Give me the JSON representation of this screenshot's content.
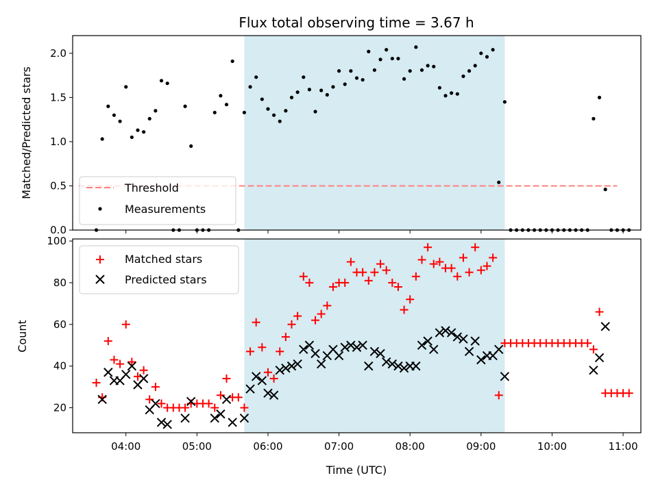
{
  "chart_data": [
    {
      "type": "scatter",
      "title": "Flux total observing time = 3.67 h",
      "ylabel": "Matched/Predicted stars",
      "xlabel": "",
      "xlim": [
        "03:15",
        "11:15"
      ],
      "ylim": [
        0,
        2.2
      ],
      "shaded_region": [
        "05:40",
        "09:20"
      ],
      "shaded_color": "#add8e6",
      "legend_position": "lower-left",
      "threshold": {
        "name": "Threshold",
        "y": 0.5,
        "x_range": [
          "03:20",
          "10:55"
        ],
        "color": "#ff7f7f",
        "style": "dashed"
      },
      "yticks": [
        "0.0",
        "0.5",
        "1.0",
        "1.5",
        "2.0"
      ],
      "series": [
        {
          "name": "Measurements",
          "color": "#000000",
          "marker": "dot",
          "points": [
            [
              "03:35",
              0.0
            ],
            [
              "03:40",
              1.03
            ],
            [
              "03:45",
              1.4
            ],
            [
              "03:50",
              1.3
            ],
            [
              "03:55",
              1.23
            ],
            [
              "04:00",
              1.62
            ],
            [
              "04:05",
              1.05
            ],
            [
              "04:10",
              1.13
            ],
            [
              "04:15",
              1.11
            ],
            [
              "04:20",
              1.26
            ],
            [
              "04:25",
              1.35
            ],
            [
              "04:30",
              1.69
            ],
            [
              "04:35",
              1.66
            ],
            [
              "04:40",
              0.0
            ],
            [
              "04:45",
              0.0
            ],
            [
              "04:50",
              1.4
            ],
            [
              "04:55",
              0.95
            ],
            [
              "05:00",
              0.0
            ],
            [
              "05:05",
              0.0
            ],
            [
              "05:10",
              0.0
            ],
            [
              "05:15",
              1.33
            ],
            [
              "05:20",
              1.52
            ],
            [
              "05:25",
              1.42
            ],
            [
              "05:30",
              1.91
            ],
            [
              "05:35",
              0.0
            ],
            [
              "05:40",
              1.33
            ],
            [
              "05:45",
              1.62
            ],
            [
              "05:50",
              1.73
            ],
            [
              "05:55",
              1.48
            ],
            [
              "06:00",
              1.37
            ],
            [
              "06:05",
              1.3
            ],
            [
              "06:10",
              1.23
            ],
            [
              "06:15",
              1.35
            ],
            [
              "06:20",
              1.5
            ],
            [
              "06:25",
              1.56
            ],
            [
              "06:30",
              1.73
            ],
            [
              "06:35",
              1.59
            ],
            [
              "06:40",
              1.34
            ],
            [
              "06:45",
              1.58
            ],
            [
              "06:50",
              1.53
            ],
            [
              "06:55",
              1.62
            ],
            [
              "07:00",
              1.8
            ],
            [
              "07:05",
              1.65
            ],
            [
              "07:10",
              1.8
            ],
            [
              "07:15",
              1.72
            ],
            [
              "07:20",
              1.7
            ],
            [
              "07:25",
              2.02
            ],
            [
              "07:30",
              1.81
            ],
            [
              "07:35",
              1.93
            ],
            [
              "07:40",
              2.04
            ],
            [
              "07:45",
              1.94
            ],
            [
              "07:50",
              1.94
            ],
            [
              "07:55",
              1.71
            ],
            [
              "08:00",
              1.8
            ],
            [
              "08:05",
              2.07
            ],
            [
              "08:10",
              1.81
            ],
            [
              "08:15",
              1.86
            ],
            [
              "08:20",
              1.85
            ],
            [
              "08:25",
              1.61
            ],
            [
              "08:30",
              1.52
            ],
            [
              "08:35",
              1.55
            ],
            [
              "08:40",
              1.54
            ],
            [
              "08:45",
              1.74
            ],
            [
              "08:50",
              1.8
            ],
            [
              "08:55",
              1.86
            ],
            [
              "09:00",
              2.0
            ],
            [
              "09:05",
              1.96
            ],
            [
              "09:10",
              2.04
            ],
            [
              "09:15",
              0.54
            ],
            [
              "09:20",
              1.45
            ],
            [
              "09:25",
              0.0
            ],
            [
              "09:30",
              0.0
            ],
            [
              "09:35",
              0.0
            ],
            [
              "09:40",
              0.0
            ],
            [
              "09:45",
              0.0
            ],
            [
              "09:50",
              0.0
            ],
            [
              "09:55",
              0.0
            ],
            [
              "10:00",
              0.0
            ],
            [
              "10:05",
              0.0
            ],
            [
              "10:10",
              0.0
            ],
            [
              "10:15",
              0.0
            ],
            [
              "10:20",
              0.0
            ],
            [
              "10:25",
              0.0
            ],
            [
              "10:30",
              0.0
            ],
            [
              "10:35",
              1.26
            ],
            [
              "10:40",
              1.5
            ],
            [
              "10:45",
              0.46
            ],
            [
              "10:50",
              0.0
            ],
            [
              "10:55",
              0.0
            ],
            [
              "11:00",
              0.0
            ],
            [
              "11:05",
              0.0
            ]
          ]
        }
      ]
    },
    {
      "type": "scatter",
      "title": "",
      "ylabel": "Count",
      "xlabel": "Time (UTC)",
      "xlim": [
        "03:15",
        "11:15"
      ],
      "ylim": [
        8,
        101
      ],
      "shaded_region": [
        "05:40",
        "09:20"
      ],
      "shaded_color": "#add8e6",
      "legend_position": "upper-left",
      "xticks": [
        "04:00",
        "05:00",
        "06:00",
        "07:00",
        "08:00",
        "09:00",
        "10:00",
        "11:00"
      ],
      "yticks": [
        "20",
        "40",
        "60",
        "80",
        "100"
      ],
      "series": [
        {
          "name": "Matched stars",
          "color": "#ff0000",
          "marker": "plus",
          "points": [
            [
              "03:35",
              32
            ],
            [
              "03:40",
              25
            ],
            [
              "03:45",
              52
            ],
            [
              "03:50",
              43
            ],
            [
              "03:55",
              41
            ],
            [
              "04:00",
              60
            ],
            [
              "04:05",
              42
            ],
            [
              "04:10",
              35
            ],
            [
              "04:15",
              38
            ],
            [
              "04:20",
              24
            ],
            [
              "04:25",
              30
            ],
            [
              "04:30",
              22
            ],
            [
              "04:35",
              20
            ],
            [
              "04:40",
              20
            ],
            [
              "04:45",
              20
            ],
            [
              "04:50",
              20
            ],
            [
              "04:55",
              22
            ],
            [
              "05:00",
              22
            ],
            [
              "05:05",
              22
            ],
            [
              "05:10",
              22
            ],
            [
              "05:15",
              20
            ],
            [
              "05:20",
              26
            ],
            [
              "05:25",
              34
            ],
            [
              "05:30",
              25
            ],
            [
              "05:35",
              25
            ],
            [
              "05:40",
              20
            ],
            [
              "05:45",
              47
            ],
            [
              "05:50",
              61
            ],
            [
              "05:55",
              49
            ],
            [
              "06:00",
              37
            ],
            [
              "06:05",
              34
            ],
            [
              "06:10",
              47
            ],
            [
              "06:15",
              54
            ],
            [
              "06:20",
              60
            ],
            [
              "06:25",
              64
            ],
            [
              "06:30",
              83
            ],
            [
              "06:35",
              80
            ],
            [
              "06:40",
              62
            ],
            [
              "06:45",
              65
            ],
            [
              "06:50",
              69
            ],
            [
              "06:55",
              78
            ],
            [
              "07:00",
              80
            ],
            [
              "07:05",
              80
            ],
            [
              "07:10",
              90
            ],
            [
              "07:15",
              85
            ],
            [
              "07:20",
              85
            ],
            [
              "07:25",
              81
            ],
            [
              "07:30",
              85
            ],
            [
              "07:35",
              89
            ],
            [
              "07:40",
              86
            ],
            [
              "07:45",
              80
            ],
            [
              "07:50",
              78
            ],
            [
              "07:55",
              67
            ],
            [
              "08:00",
              72
            ],
            [
              "08:05",
              83
            ],
            [
              "08:10",
              91
            ],
            [
              "08:15",
              97
            ],
            [
              "08:20",
              89
            ],
            [
              "08:25",
              90
            ],
            [
              "08:30",
              87
            ],
            [
              "08:35",
              87
            ],
            [
              "08:40",
              83
            ],
            [
              "08:45",
              92
            ],
            [
              "08:50",
              85
            ],
            [
              "08:55",
              97
            ],
            [
              "09:00",
              86
            ],
            [
              "09:05",
              88
            ],
            [
              "09:10",
              92
            ],
            [
              "09:15",
              26
            ],
            [
              "09:20",
              51
            ],
            [
              "09:25",
              51
            ],
            [
              "09:30",
              51
            ],
            [
              "09:35",
              51
            ],
            [
              "09:40",
              51
            ],
            [
              "09:45",
              51
            ],
            [
              "09:50",
              51
            ],
            [
              "09:55",
              51
            ],
            [
              "10:00",
              51
            ],
            [
              "10:05",
              51
            ],
            [
              "10:10",
              51
            ],
            [
              "10:15",
              51
            ],
            [
              "10:20",
              51
            ],
            [
              "10:25",
              51
            ],
            [
              "10:30",
              51
            ],
            [
              "10:35",
              48
            ],
            [
              "10:40",
              66
            ],
            [
              "10:45",
              27
            ],
            [
              "10:50",
              27
            ],
            [
              "10:55",
              27
            ],
            [
              "11:00",
              27
            ],
            [
              "11:05",
              27
            ]
          ]
        },
        {
          "name": "Predicted stars",
          "color": "#000000",
          "marker": "x",
          "points": [
            [
              "03:40",
              24
            ],
            [
              "03:45",
              37
            ],
            [
              "03:50",
              33
            ],
            [
              "03:55",
              33
            ],
            [
              "04:00",
              36
            ],
            [
              "04:05",
              40
            ],
            [
              "04:10",
              31
            ],
            [
              "04:15",
              34
            ],
            [
              "04:20",
              19
            ],
            [
              "04:25",
              22
            ],
            [
              "04:30",
              13
            ],
            [
              "04:35",
              12
            ],
            [
              "04:50",
              15
            ],
            [
              "04:55",
              23
            ],
            [
              "05:15",
              15
            ],
            [
              "05:20",
              17
            ],
            [
              "05:25",
              24
            ],
            [
              "05:30",
              13
            ],
            [
              "05:40",
              15
            ],
            [
              "05:45",
              29
            ],
            [
              "05:50",
              35
            ],
            [
              "05:55",
              33
            ],
            [
              "06:00",
              27
            ],
            [
              "06:05",
              26
            ],
            [
              "06:10",
              38
            ],
            [
              "06:15",
              39
            ],
            [
              "06:20",
              40
            ],
            [
              "06:25",
              41
            ],
            [
              "06:30",
              48
            ],
            [
              "06:35",
              50
            ],
            [
              "06:40",
              46
            ],
            [
              "06:45",
              41
            ],
            [
              "06:50",
              45
            ],
            [
              "06:55",
              48
            ],
            [
              "07:00",
              45
            ],
            [
              "07:05",
              49
            ],
            [
              "07:10",
              50
            ],
            [
              "07:15",
              49
            ],
            [
              "07:20",
              50
            ],
            [
              "07:25",
              40
            ],
            [
              "07:30",
              47
            ],
            [
              "07:35",
              46
            ],
            [
              "07:40",
              42
            ],
            [
              "07:45",
              41
            ],
            [
              "07:50",
              40
            ],
            [
              "07:55",
              39
            ],
            [
              "08:00",
              40
            ],
            [
              "08:05",
              40
            ],
            [
              "08:10",
              50
            ],
            [
              "08:15",
              52
            ],
            [
              "08:20",
              48
            ],
            [
              "08:25",
              56
            ],
            [
              "08:30",
              57
            ],
            [
              "08:35",
              56
            ],
            [
              "08:40",
              54
            ],
            [
              "08:45",
              53
            ],
            [
              "08:50",
              47
            ],
            [
              "08:55",
              52
            ],
            [
              "09:00",
              43
            ],
            [
              "09:05",
              45
            ],
            [
              "09:10",
              45
            ],
            [
              "09:15",
              48
            ],
            [
              "09:20",
              35
            ],
            [
              "10:35",
              38
            ],
            [
              "10:40",
              44
            ],
            [
              "10:45",
              59
            ]
          ]
        }
      ]
    }
  ]
}
